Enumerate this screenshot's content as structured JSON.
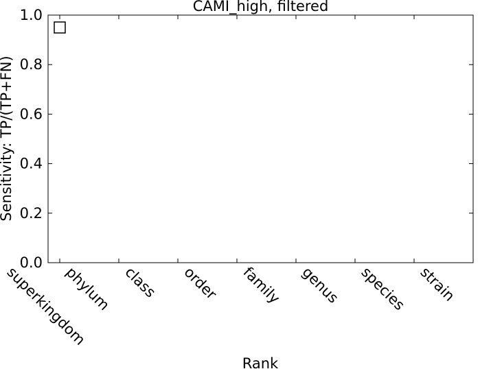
{
  "chart_data": {
    "type": "scatter",
    "title": "CAMI_high, filtered",
    "xlabel": "Rank",
    "ylabel": "Sensitivity: TP/(TP+FN)",
    "categories": [
      "superkingdom",
      "phylum",
      "class",
      "order",
      "family",
      "genus",
      "species",
      "strain"
    ],
    "ylim": [
      0.0,
      1.0
    ],
    "yticks": [
      "0.0",
      "0.2",
      "0.4",
      "0.6",
      "0.8",
      "1.0"
    ],
    "grid": false,
    "series": [
      {
        "x": "superkingdom",
        "values": [
          0.95
        ],
        "marker": "square-open",
        "color": "#000000"
      }
    ]
  }
}
